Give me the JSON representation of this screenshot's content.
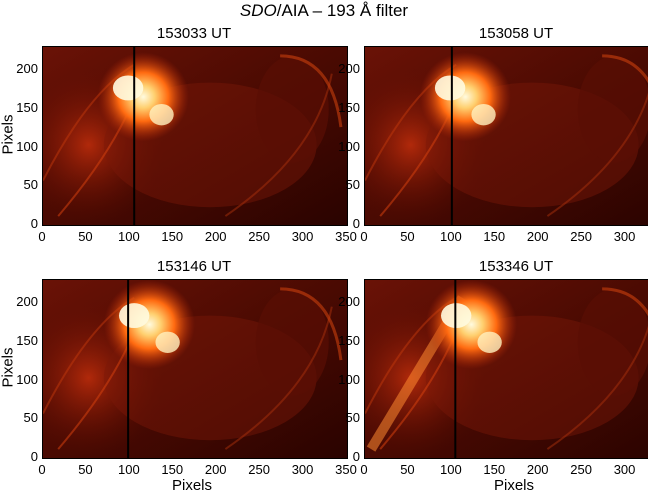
{
  "title": {
    "italic": "SDO",
    "rest": "/AIA – 193 Å filter"
  },
  "axes": {
    "xlabel": "Pixels",
    "ylabel": "Pixels"
  },
  "x_ticks": [
    "0",
    "50",
    "100",
    "150",
    "200",
    "250",
    "300",
    "350"
  ],
  "y_ticks": [
    "0",
    "50",
    "100",
    "150",
    "200"
  ],
  "panels": [
    {
      "time": "153033 UT",
      "line_x": 105
    },
    {
      "time": "153058 UT",
      "line_x": 100
    },
    {
      "time": "153146 UT",
      "line_x": 98
    },
    {
      "time": "153346 UT",
      "line_x": 104
    }
  ],
  "colors": {
    "bg_dark": "#2a0000",
    "mid": "#8a1a08",
    "bright": "#ff5a10",
    "core": "#fff6c8"
  }
}
